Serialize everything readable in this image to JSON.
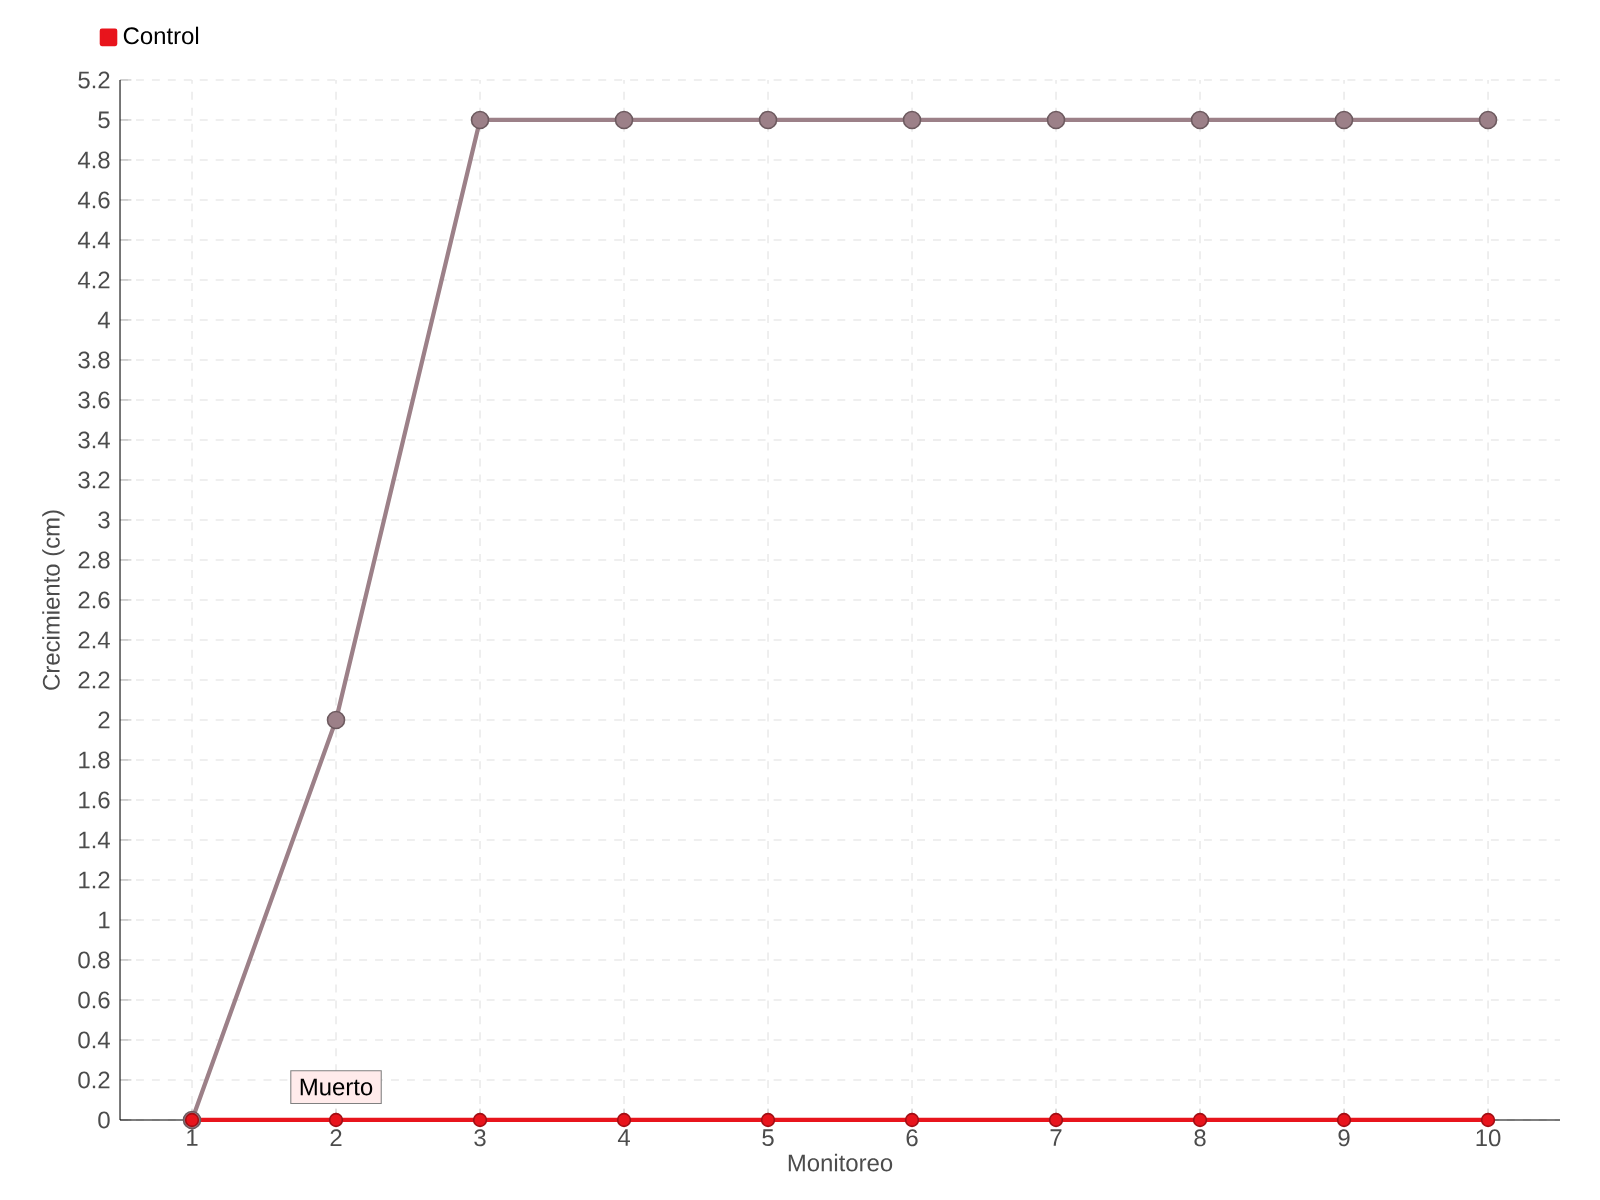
{
  "chart_data": {
    "type": "line",
    "xlabel": "Monitoreo",
    "ylabel": "Crecimiento (cm)",
    "x": [
      1,
      2,
      3,
      4,
      5,
      6,
      7,
      8,
      9,
      10
    ],
    "series": [
      {
        "color": "#9c8088",
        "values": [
          0,
          2,
          5,
          5,
          5,
          5,
          5,
          5,
          5,
          5
        ]
      },
      {
        "name": "Control",
        "color": "#e8141c",
        "values": [
          0,
          0,
          0,
          0,
          0,
          0,
          0,
          0,
          0,
          0
        ]
      }
    ],
    "xlim": [
      0.5,
      10.5
    ],
    "xticks": [
      1,
      2,
      3,
      4,
      5,
      6,
      7,
      8,
      9,
      10
    ],
    "ylim": [
      0,
      5.2
    ],
    "yticks": [
      0,
      0.2,
      0.4,
      0.6,
      0.8,
      1,
      1.2,
      1.4,
      1.6,
      1.8,
      2,
      2.2,
      2.4,
      2.6,
      2.8,
      3,
      3.2,
      3.4,
      3.6,
      3.8,
      4,
      4.2,
      4.4,
      4.6,
      4.8,
      5,
      5.2
    ],
    "annotations": [
      {
        "text": "Muerto",
        "x": 2,
        "y": 0
      }
    ],
    "grid": true,
    "legend": "top left",
    "marker": "circle",
    "line_style": "solid"
  }
}
